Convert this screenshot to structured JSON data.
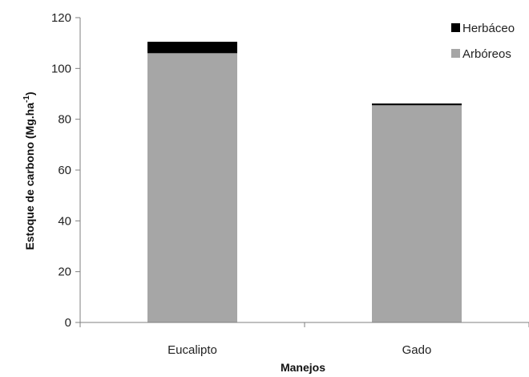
{
  "chart_data": {
    "type": "bar",
    "stacked": true,
    "categories": [
      "Eucalipto",
      "Gado"
    ],
    "series": [
      {
        "name": "Arbóreos",
        "values": [
          106,
          85.5
        ],
        "color": "#a6a6a6"
      },
      {
        "name": "Herbáceo",
        "values": [
          4.5,
          0.7
        ],
        "color": "#000000"
      }
    ],
    "xlabel": "Manejos",
    "ylabel": "Estoque de carbono (Mg.ha",
    "ylabel_superscript": "-1",
    "ylabel_suffix": ")",
    "ylim": [
      0,
      120
    ],
    "yticks": [
      0,
      20,
      40,
      60,
      80,
      100,
      120
    ],
    "grid": false,
    "legend_position": "top-right"
  }
}
